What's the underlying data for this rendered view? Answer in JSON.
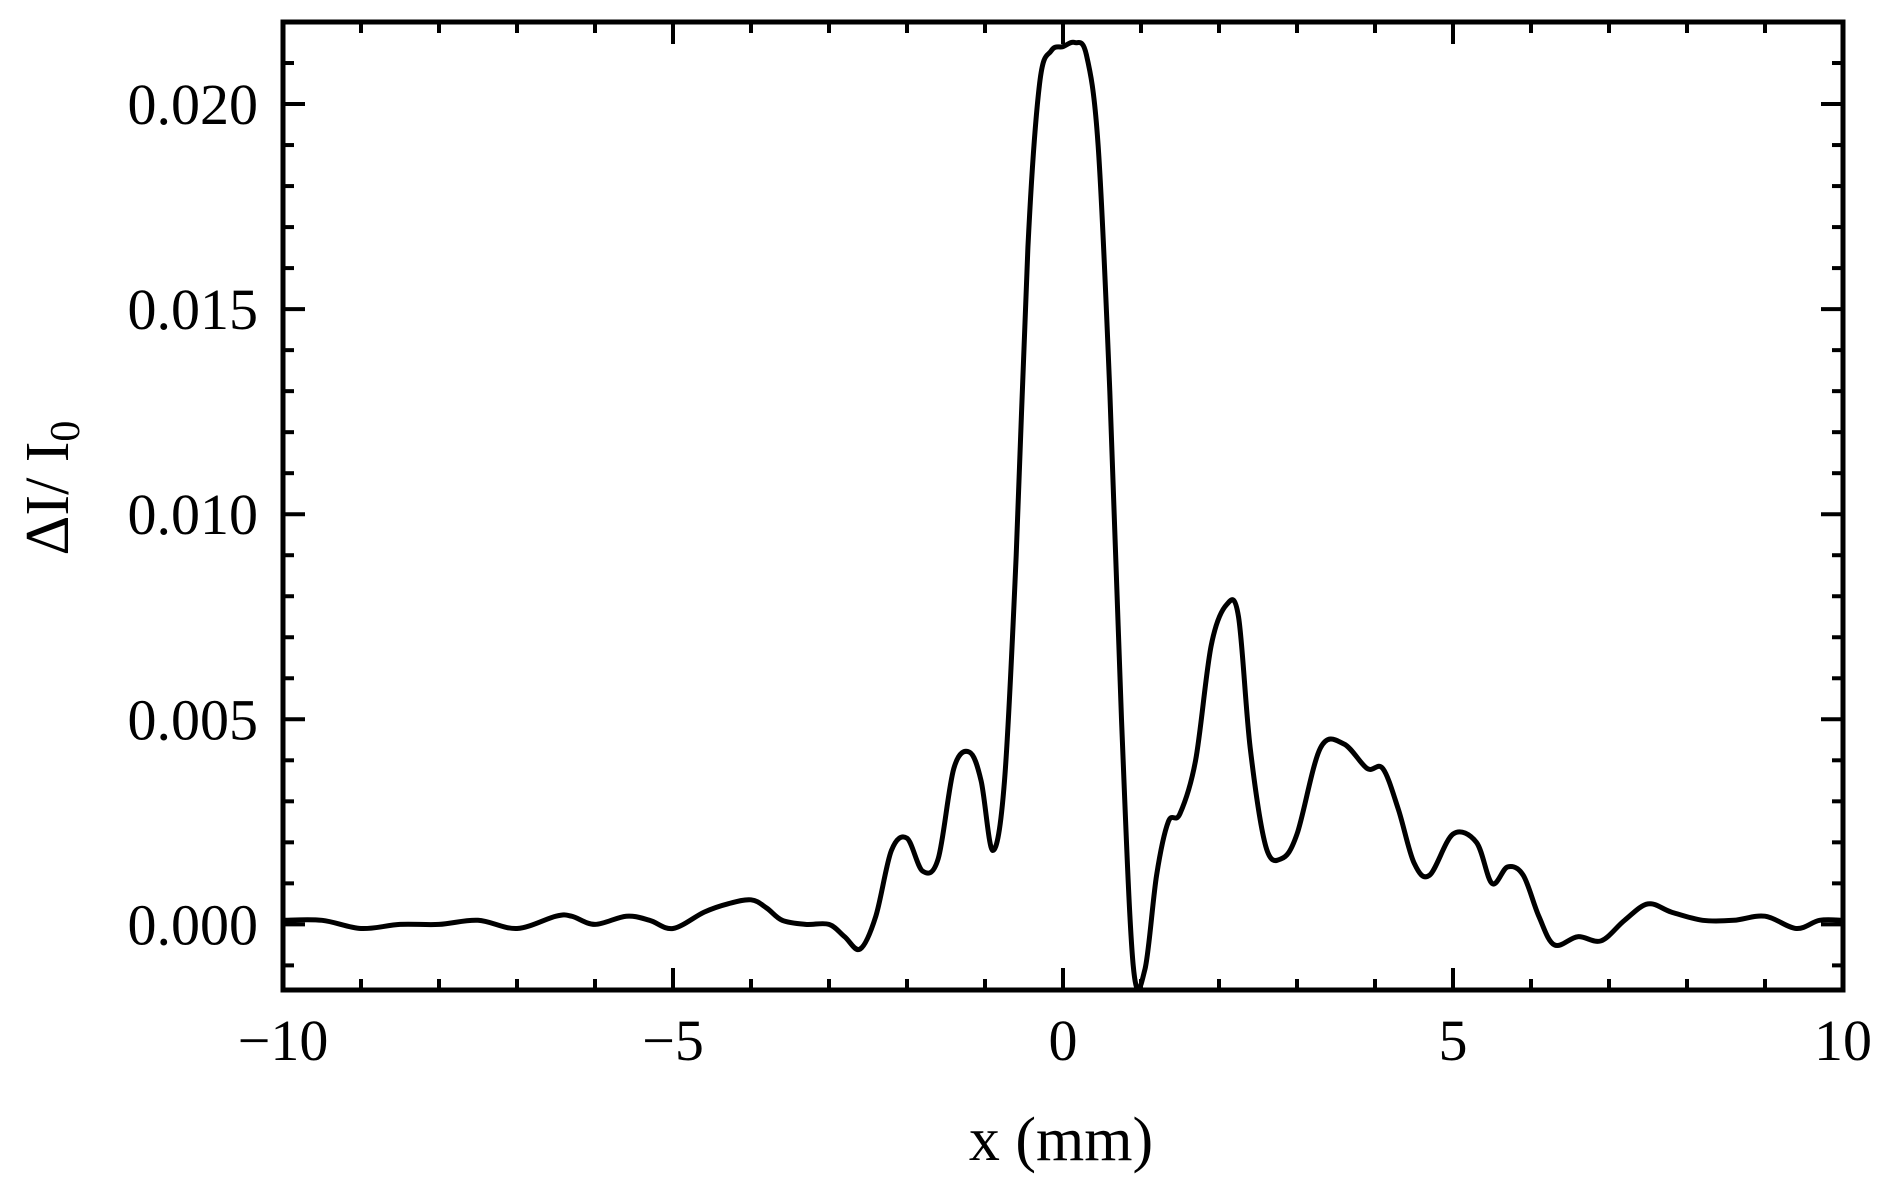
{
  "chart_data": {
    "type": "line",
    "title": "",
    "xlabel": "x (mm)",
    "ylabel": "ΔI/ I",
    "ylabel_subscript": "0",
    "xlim": [
      -10,
      10
    ],
    "ylim": [
      -0.0016,
      0.022
    ],
    "grid": false,
    "legend": "none",
    "x_ticks": [
      -10,
      -5,
      0,
      5,
      10
    ],
    "x_tick_labels": [
      "−10",
      "−5",
      "0",
      "5",
      "10"
    ],
    "y_ticks": [
      0.0,
      0.005,
      0.01,
      0.015,
      0.02
    ],
    "y_tick_labels": [
      "0.000",
      "0.005",
      "0.010",
      "0.015",
      "0.020"
    ],
    "colors": {
      "line": "#000000",
      "frame": "#000000"
    },
    "series": [
      {
        "x": [
          -10,
          -9.5,
          -9,
          -8.5,
          -8,
          -7.5,
          -7,
          -6.5,
          -6.3,
          -6,
          -5.6,
          -5.3,
          -5,
          -4.6,
          -4.3,
          -4,
          -3.8,
          -3.6,
          -3.3,
          -3,
          -2.8,
          -2.6,
          -2.4,
          -2.2,
          -2,
          -1.8,
          -1.6,
          -1.4,
          -1.2,
          -1.05,
          -0.9,
          -0.75,
          -0.6,
          -0.45,
          -0.3,
          -0.15,
          0,
          0.15,
          0.3,
          0.45,
          0.6,
          0.75,
          0.9,
          1.05,
          1.2,
          1.35,
          1.5,
          1.7,
          1.9,
          2.1,
          2.25,
          2.4,
          2.6,
          2.8,
          3.0,
          3.3,
          3.6,
          3.9,
          4.1,
          4.3,
          4.5,
          4.7,
          5.0,
          5.3,
          5.5,
          5.7,
          5.9,
          6.1,
          6.3,
          6.6,
          6.9,
          7.2,
          7.5,
          7.8,
          8.2,
          8.6,
          9.0,
          9.4,
          9.7,
          10
        ],
        "y": [
          0.0001,
          0.0001,
          -0.0001,
          0.0,
          0.0,
          0.0001,
          -0.0001,
          0.0002,
          0.0002,
          0.0,
          0.0002,
          0.0001,
          -0.0001,
          0.0003,
          0.0005,
          0.0006,
          0.0004,
          0.0001,
          0.0,
          0.0,
          -0.0003,
          -0.0006,
          0.0002,
          0.0018,
          0.0021,
          0.0013,
          0.0016,
          0.0038,
          0.0042,
          0.0035,
          0.0018,
          0.0035,
          0.009,
          0.0165,
          0.0205,
          0.0213,
          0.0214,
          0.0215,
          0.0212,
          0.019,
          0.013,
          0.005,
          -0.001,
          -0.0011,
          0.0012,
          0.0025,
          0.0027,
          0.004,
          0.0068,
          0.0078,
          0.0075,
          0.0043,
          0.0019,
          0.0016,
          0.0022,
          0.0043,
          0.0044,
          0.0038,
          0.0038,
          0.0028,
          0.0015,
          0.0012,
          0.0022,
          0.002,
          0.001,
          0.0014,
          0.0012,
          0.0002,
          -0.0005,
          -0.0003,
          -0.0004,
          0.0001,
          0.0005,
          0.0003,
          0.0001,
          0.0001,
          0.0002,
          -0.0001,
          0.0001,
          0.0001
        ]
      }
    ]
  }
}
